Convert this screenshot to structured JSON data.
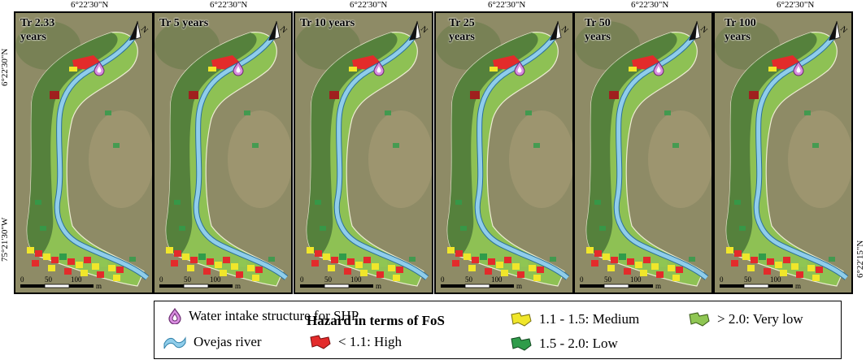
{
  "coordinates": {
    "top": "6°22'30\"N",
    "left_upper": "6°22'30\"N",
    "left_lower": "75°21'30\"W",
    "right": "6°22'15\"N"
  },
  "panels": [
    {
      "title_line1": "Tr 2.33",
      "title_line2": "years"
    },
    {
      "title_line1": "Tr 5 years",
      "title_line2": ""
    },
    {
      "title_line1": "Tr 10 years",
      "title_line2": ""
    },
    {
      "title_line1": "Tr 25",
      "title_line2": "years"
    },
    {
      "title_line1": "Tr 50",
      "title_line2": "years"
    },
    {
      "title_line1": "Tr 100",
      "title_line2": "years"
    }
  ],
  "north_label": "N",
  "scale": {
    "ticks": [
      "0",
      "50",
      "100"
    ],
    "unit": "m"
  },
  "legend": {
    "water_intake": "Water intake structure for SHP",
    "river": "Ovejas river",
    "hazard_title": "Hazard in terms of FoS",
    "high": "< 1.1: High",
    "medium": "1.1 - 1.5: Medium",
    "low": "1.5 - 2.0: Low",
    "very_low": "> 2.0: Very low"
  },
  "colors": {
    "high": "#e32b2b",
    "medium": "#f0e62a",
    "low": "#2f9c4a",
    "very_low": "#8fc653",
    "river": "#8fcdea",
    "intake": "#d98de0"
  }
}
